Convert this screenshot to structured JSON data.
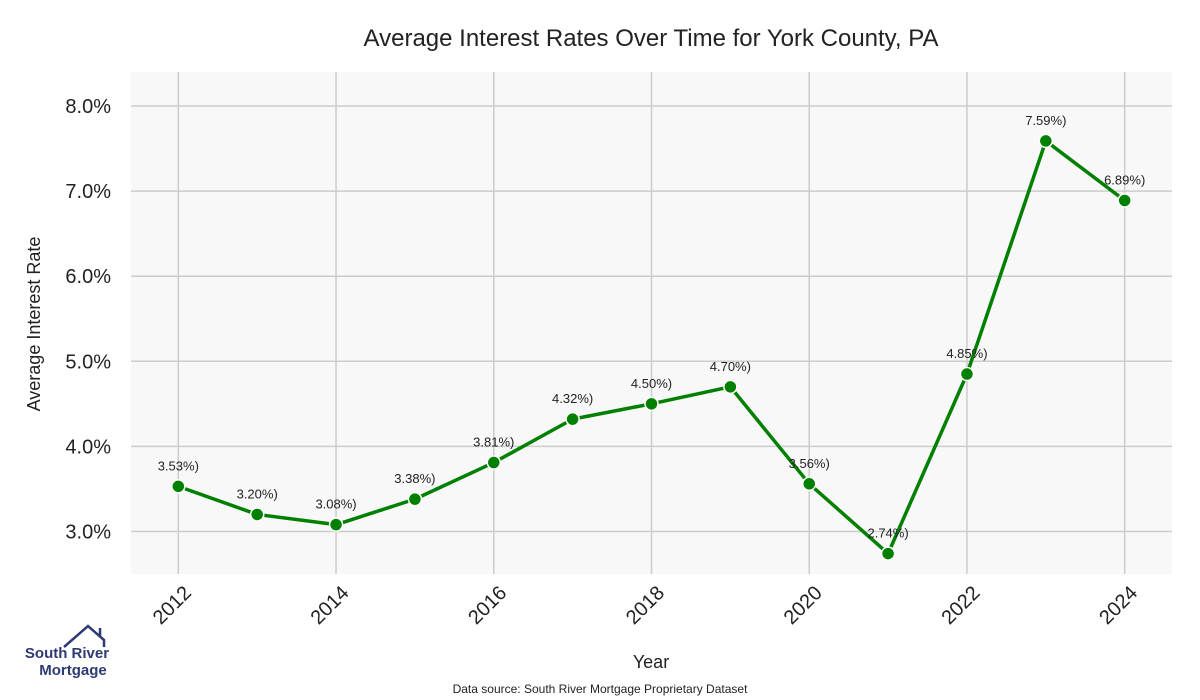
{
  "chart_data": {
    "type": "line",
    "title": "Average Interest Rates Over Time for York County, PA",
    "xlabel": "Year",
    "ylabel": "Average Interest Rate",
    "x": [
      2012,
      2013,
      2014,
      2015,
      2016,
      2017,
      2018,
      2019,
      2020,
      2021,
      2022,
      2023,
      2024
    ],
    "values": [
      3.53,
      3.2,
      3.08,
      3.38,
      3.81,
      4.32,
      4.5,
      4.7,
      3.56,
      2.74,
      4.85,
      7.59,
      6.89
    ],
    "data_labels": [
      "3.53%)",
      "3.20%)",
      "3.08%)",
      "3.38%)",
      "3.81%)",
      "4.32%)",
      "4.50%)",
      "4.70%)",
      "3.56%)",
      "2.74%)",
      "4.85%)",
      "7.59%)",
      "6.89%)"
    ],
    "x_ticks": [
      "2012",
      "2014",
      "2016",
      "2018",
      "2020",
      "2022",
      "2024"
    ],
    "y_ticks": [
      "3.0%",
      "4.0%",
      "5.0%",
      "6.0%",
      "7.0%",
      "8.0%"
    ],
    "y_tick_values": [
      3.0,
      4.0,
      5.0,
      6.0,
      7.0,
      8.0
    ],
    "ylim": [
      2.5,
      8.4
    ],
    "xlim": [
      2011.4,
      2024.6
    ],
    "grid": true,
    "line_color": "#008000",
    "plot_background": "#f8f8f8",
    "grid_color": "#cccccc"
  },
  "footer": {
    "source": "Data source: South River Mortgage Proprietary Dataset"
  },
  "logo": {
    "line1": "South River",
    "line2": "Mortgage",
    "color": "#2e3a73",
    "icon": "house-roof-icon"
  }
}
